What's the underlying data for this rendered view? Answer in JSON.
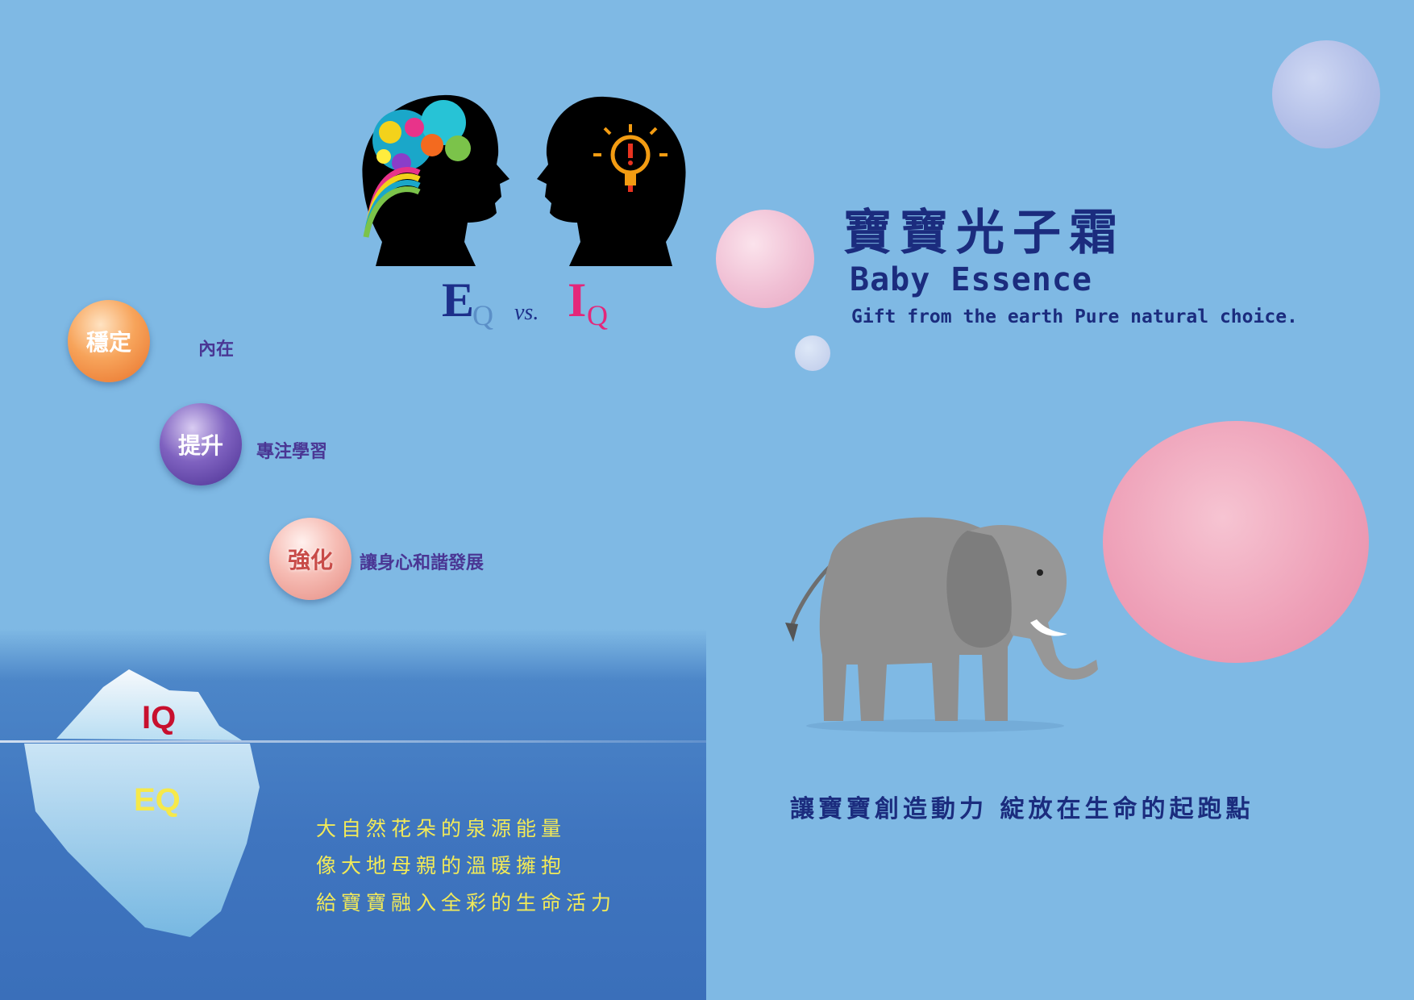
{
  "heads": {
    "eq_letter": "E",
    "eq_sub": "Q",
    "vs": "vs.",
    "iq_letter": "I",
    "iq_sub": "Q"
  },
  "points": [
    {
      "badge": "穩定",
      "text": "內在"
    },
    {
      "badge": "提升",
      "text": "專注學習"
    },
    {
      "badge": "強化",
      "text": "讓身心和諧發展"
    }
  ],
  "iceberg": {
    "top_label": "IQ",
    "bottom_label": "EQ"
  },
  "poem": [
    "大自然花朵的泉源能量",
    "像大地母親的溫暖擁抱",
    "給寶寶融入全彩的生命活力"
  ],
  "product": {
    "title_zh": "寶寶光子霜",
    "title_en": "Baby Essence",
    "tagline": "Gift from the earth Pure natural choice."
  },
  "slogan": "讓寶寶創造動力  綻放在生命的起跑點",
  "colors": {
    "background": "#7fb9e4",
    "navy_text": "#1b2c7e",
    "poem_yellow": "#f2ea58",
    "iq_red": "#c8102e",
    "eq_yellow": "#f6e94a",
    "iq_pink": "#e4277a"
  }
}
